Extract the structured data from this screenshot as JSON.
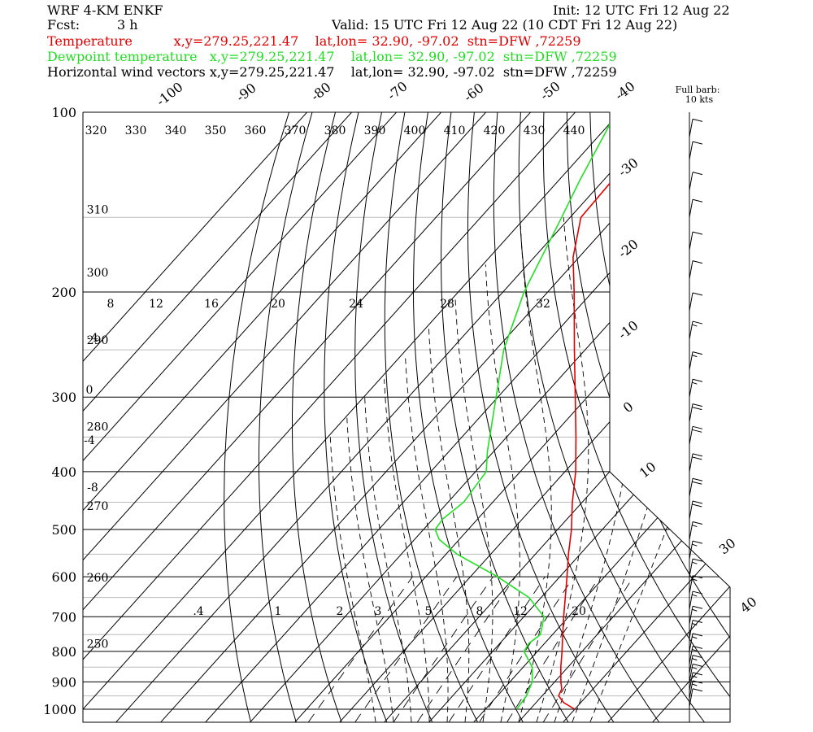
{
  "header": {
    "model": "WRF 4-KM ENKF",
    "init": "Init: 12 UTC Fri 12 Aug 22",
    "fcst_label": "Fcst:",
    "fcst_value": "3 h",
    "valid": "Valid: 15 UTC Fri 12 Aug 22 (10 CDT Fri 12 Aug 22)",
    "line_temp": "Temperature          x,y=279.25,221.47    lat,lon= 32.90, -97.02  stn=DFW ,72259",
    "line_dew": "Dewpoint temperature   x,y=279.25,221.47    lat,lon= 32.90, -97.02  stn=DFW ,72259",
    "line_wind": "Horizontal wind vectors x,y=279.25,221.47    lat,lon= 32.90, -97.02  stn=DFW ,72259",
    "barb_key_1": "Full barb:",
    "barb_key_2": "10 kts"
  },
  "colors": {
    "temperature": "#e00000",
    "dewpoint": "#22e022",
    "text": "#000000",
    "gridlines": "#000000",
    "light_isobars": "#bbbbbb"
  },
  "chart_data": {
    "type": "line",
    "diagram": "skew-T log-p",
    "y_axis": "pressure (hPa), log scale, top to bottom",
    "ylim": [
      1000,
      100
    ],
    "pressure_labels": [
      "100",
      "200",
      "300",
      "400",
      "500",
      "600",
      "700",
      "800",
      "900",
      "1000"
    ],
    "temperature_labels": [
      "-100",
      "-90",
      "-80",
      "-70",
      "-60",
      "-50",
      "-40",
      "-30",
      "-20",
      "-10",
      "0",
      "10",
      "30",
      "40"
    ],
    "theta_labels": [
      {
        "text": "320",
        "p": 108
      },
      {
        "text": "330",
        "p": 108
      },
      {
        "text": "340",
        "p": 108
      },
      {
        "text": "350",
        "p": 108
      },
      {
        "text": "360",
        "p": 108
      },
      {
        "text": "370",
        "p": 108
      },
      {
        "text": "380",
        "p": 108
      },
      {
        "text": "390",
        "p": 108
      },
      {
        "text": "400",
        "p": 108
      },
      {
        "text": "410",
        "p": 108
      },
      {
        "text": "420",
        "p": 108
      },
      {
        "text": "430",
        "p": 108
      },
      {
        "text": "440",
        "p": 108
      },
      {
        "text": "310",
        "p": 145
      },
      {
        "text": "300",
        "p": 185
      },
      {
        "text": "290",
        "p": 240
      },
      {
        "text": "280",
        "p": 335
      },
      {
        "text": "270",
        "p": 455
      },
      {
        "text": "260",
        "p": 600
      },
      {
        "text": "250",
        "p": 775
      }
    ],
    "pseudoadiabat_labels": [
      "8",
      "12",
      "16",
      "20",
      "24",
      "28",
      "32",
      "-4",
      "0",
      "-4",
      "-8"
    ],
    "mixing_ratio_labels": [
      ".4",
      "1",
      "2",
      "3",
      "5",
      "8",
      "12",
      "20"
    ],
    "series": [
      {
        "name": "Temperature",
        "color": "#e00000",
        "points": [
          {
            "p": 1000,
            "t": 30.0
          },
          {
            "p": 975,
            "t": 26.2
          },
          {
            "p": 950,
            "t": 23.7
          },
          {
            "p": 925,
            "t": 23.0
          },
          {
            "p": 900,
            "t": 21.4
          },
          {
            "p": 850,
            "t": 18.4
          },
          {
            "p": 800,
            "t": 15.5
          },
          {
            "p": 750,
            "t": 12.3
          },
          {
            "p": 700,
            "t": 8.9
          },
          {
            "p": 650,
            "t": 5.4
          },
          {
            "p": 600,
            "t": 1.6
          },
          {
            "p": 550,
            "t": -2.6
          },
          {
            "p": 500,
            "t": -6.9
          },
          {
            "p": 450,
            "t": -12.2
          },
          {
            "p": 400,
            "t": -17.6
          },
          {
            "p": 350,
            "t": -24.5
          },
          {
            "p": 300,
            "t": -32.7
          },
          {
            "p": 250,
            "t": -42.4
          },
          {
            "p": 200,
            "t": -54.1
          },
          {
            "p": 175,
            "t": -61.3
          },
          {
            "p": 150,
            "t": -67.6
          },
          {
            "p": 130,
            "t": -68.0
          },
          {
            "p": 115,
            "t": -70.0
          },
          {
            "p": 105,
            "t": -71.9
          },
          {
            "p": 100,
            "t": -72.0
          }
        ]
      },
      {
        "name": "Dewpoint temperature",
        "color": "#22e022",
        "points": [
          {
            "p": 1000,
            "t": 17.0
          },
          {
            "p": 950,
            "t": 16.5
          },
          {
            "p": 900,
            "t": 15.0
          },
          {
            "p": 850,
            "t": 12.0
          },
          {
            "p": 800,
            "t": 7.0
          },
          {
            "p": 775,
            "t": 6.5
          },
          {
            "p": 750,
            "t": 7.3
          },
          {
            "p": 700,
            "t": 4.5
          },
          {
            "p": 650,
            "t": -2.7
          },
          {
            "p": 600,
            "t": -13.9
          },
          {
            "p": 550,
            "t": -27.5
          },
          {
            "p": 520,
            "t": -34.4
          },
          {
            "p": 500,
            "t": -37.4
          },
          {
            "p": 480,
            "t": -37.8
          },
          {
            "p": 450,
            "t": -36.5
          },
          {
            "p": 400,
            "t": -37.6
          },
          {
            "p": 370,
            "t": -41.4
          },
          {
            "p": 300,
            "t": -50.4
          },
          {
            "p": 250,
            "t": -58.2
          },
          {
            "p": 200,
            "t": -65.3
          },
          {
            "p": 150,
            "t": -71.9
          },
          {
            "p": 130,
            "t": -75.3
          },
          {
            "p": 100,
            "t": -80.8
          }
        ]
      }
    ],
    "wind_barbs": [
      {
        "p": 110,
        "speed_kt": 10
      },
      {
        "p": 120,
        "speed_kt": 10
      },
      {
        "p": 135,
        "speed_kt": 10
      },
      {
        "p": 150,
        "speed_kt": 10
      },
      {
        "p": 170,
        "speed_kt": 10
      },
      {
        "p": 190,
        "speed_kt": 10
      },
      {
        "p": 215,
        "speed_kt": 10
      },
      {
        "p": 240,
        "speed_kt": 15
      },
      {
        "p": 270,
        "speed_kt": 15
      },
      {
        "p": 300,
        "speed_kt": 15
      },
      {
        "p": 330,
        "speed_kt": 20
      },
      {
        "p": 360,
        "speed_kt": 20
      },
      {
        "p": 400,
        "speed_kt": 20
      },
      {
        "p": 440,
        "speed_kt": 20
      },
      {
        "p": 480,
        "speed_kt": 20
      },
      {
        "p": 520,
        "speed_kt": 15
      },
      {
        "p": 560,
        "speed_kt": 15
      },
      {
        "p": 600,
        "speed_kt": 15
      },
      {
        "p": 640,
        "speed_kt": 15
      },
      {
        "p": 680,
        "speed_kt": 15
      },
      {
        "p": 720,
        "speed_kt": 15
      },
      {
        "p": 760,
        "speed_kt": 15
      },
      {
        "p": 800,
        "speed_kt": 15
      },
      {
        "p": 840,
        "speed_kt": 15
      },
      {
        "p": 870,
        "speed_kt": 15
      },
      {
        "p": 900,
        "speed_kt": 15
      },
      {
        "p": 930,
        "speed_kt": 15
      },
      {
        "p": 960,
        "speed_kt": 15
      },
      {
        "p": 990,
        "speed_kt": 10
      }
    ],
    "hodograph_labels": [
      "30",
      "40"
    ]
  }
}
